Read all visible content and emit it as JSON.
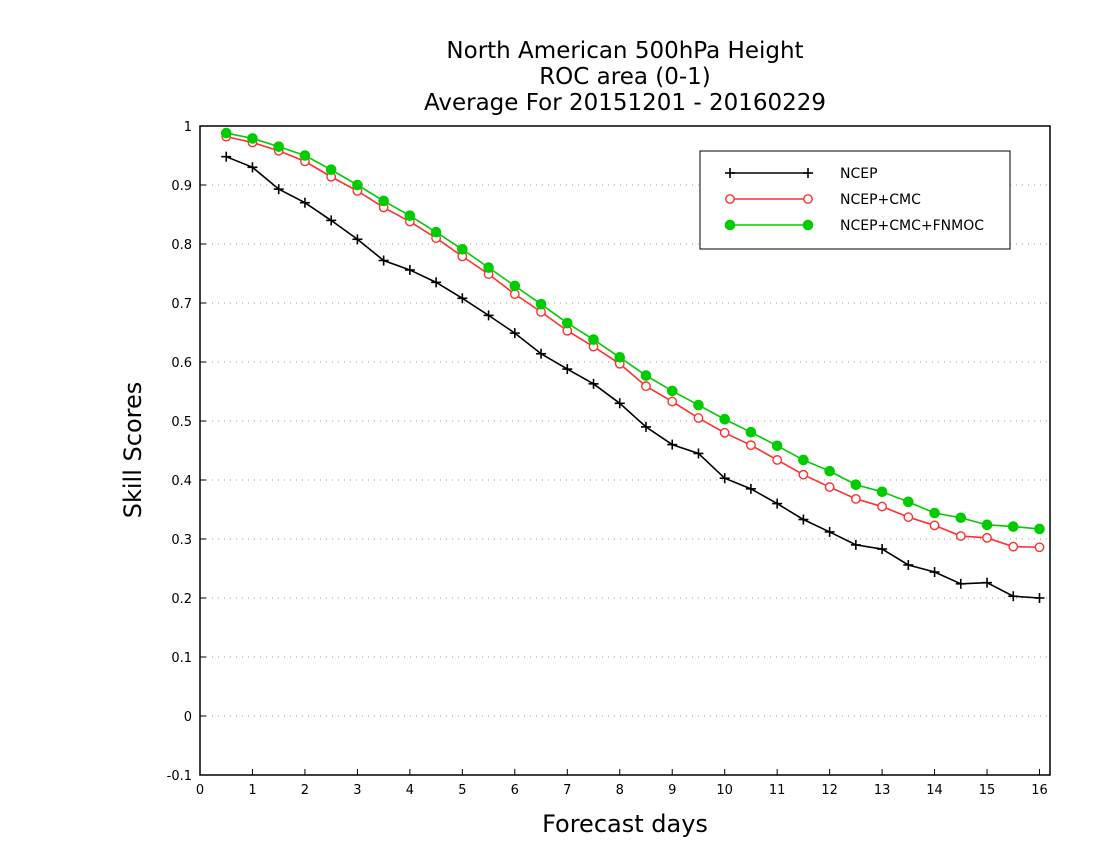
{
  "chart_data": {
    "type": "line",
    "title_lines": [
      "North American 500hPa Height",
      "ROC area (0-1)",
      "Average For 20151201 - 20160229"
    ],
    "xlabel": "Forecast days",
    "ylabel": "Skill Scores",
    "xlim": [
      0,
      16.2
    ],
    "ylim": [
      -0.1,
      1
    ],
    "xticks": [
      0,
      1,
      2,
      3,
      4,
      5,
      6,
      7,
      8,
      9,
      10,
      11,
      12,
      13,
      14,
      15,
      16
    ],
    "yticks": [
      -0.1,
      0,
      0.1,
      0.2,
      0.3,
      0.4,
      0.5,
      0.6,
      0.7,
      0.8,
      0.9,
      1
    ],
    "ytick_labels": [
      "-0.1",
      "0",
      "0.1",
      "0.2",
      "0.3",
      "0.4",
      "0.5",
      "0.6",
      "0.7",
      "0.8",
      "0.9",
      "1"
    ],
    "grid": "horizontal dotted",
    "legend_placement": "top-right",
    "x": [
      0.5,
      1,
      1.5,
      2,
      2.5,
      3,
      3.5,
      4,
      4.5,
      5,
      5.5,
      6,
      6.5,
      7,
      7.5,
      8,
      8.5,
      9,
      9.5,
      10,
      10.5,
      11,
      11.5,
      12,
      12.5,
      13,
      13.5,
      14,
      14.5,
      15,
      15.5,
      16
    ],
    "series": [
      {
        "name": "NCEP",
        "color": "#000000",
        "marker": "plus",
        "values": [
          0.948,
          0.93,
          0.893,
          0.87,
          0.84,
          0.808,
          0.772,
          0.756,
          0.735,
          0.708,
          0.679,
          0.649,
          0.614,
          0.588,
          0.563,
          0.53,
          0.49,
          0.46,
          0.445,
          0.403,
          0.385,
          0.36,
          0.333,
          0.312,
          0.29,
          0.283,
          0.256,
          0.244,
          0.224,
          0.226,
          0.203,
          0.2
        ]
      },
      {
        "name": "NCEP+CMC",
        "color": "#ff3030",
        "marker": "open-circle",
        "values": [
          0.982,
          0.972,
          0.958,
          0.94,
          0.914,
          0.89,
          0.862,
          0.838,
          0.81,
          0.779,
          0.749,
          0.715,
          0.685,
          0.653,
          0.626,
          0.597,
          0.559,
          0.533,
          0.505,
          0.48,
          0.459,
          0.434,
          0.409,
          0.388,
          0.368,
          0.355,
          0.337,
          0.323,
          0.305,
          0.302,
          0.287,
          0.286
        ]
      },
      {
        "name": "NCEP+CMC+FNMOC",
        "color": "#00cc00",
        "marker": "filled-circle",
        "values": [
          0.988,
          0.979,
          0.965,
          0.95,
          0.926,
          0.9,
          0.873,
          0.848,
          0.82,
          0.791,
          0.76,
          0.729,
          0.698,
          0.666,
          0.638,
          0.608,
          0.577,
          0.551,
          0.527,
          0.503,
          0.481,
          0.458,
          0.434,
          0.415,
          0.392,
          0.38,
          0.363,
          0.344,
          0.336,
          0.324,
          0.321,
          0.317
        ]
      }
    ]
  }
}
